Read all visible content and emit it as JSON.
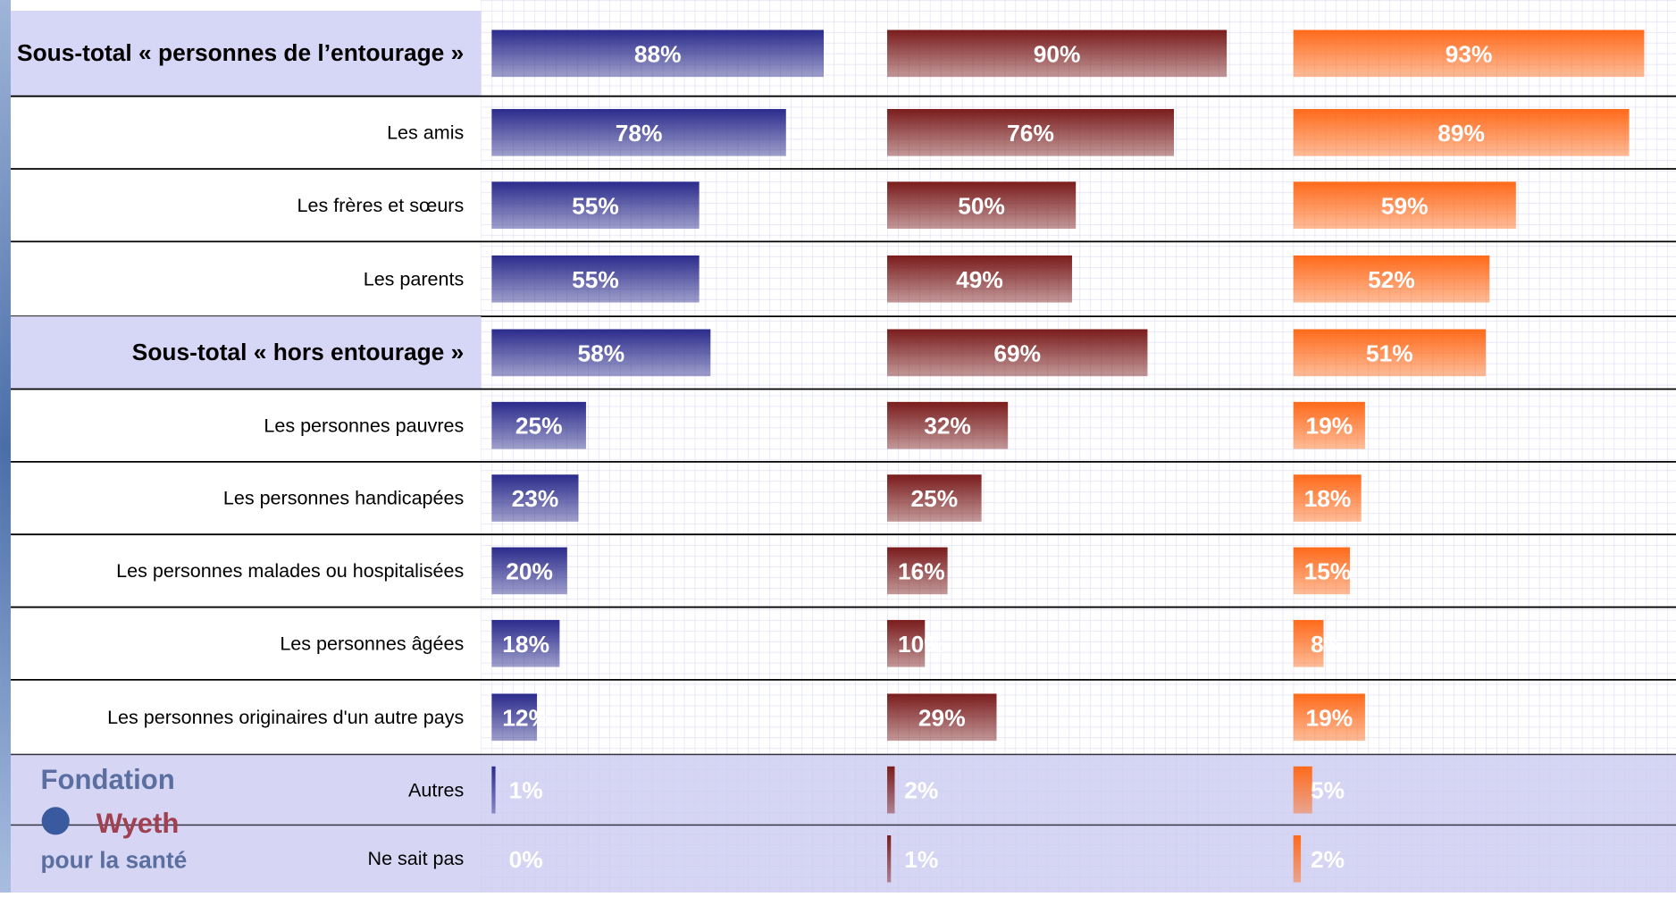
{
  "chart_data": {
    "type": "bar",
    "categories": [
      "Sous-total « personnes de l’entourage »",
      "Les amis",
      "Les frères et sœurs",
      "Les parents",
      "Sous-total « hors entourage »",
      "Les personnes pauvres",
      "Les personnes handicapées",
      "Les personnes malades ou hospitalisées",
      "Les personnes âgées",
      "Les personnes originaires d'un autre pays",
      "Autres",
      "Ne sait pas"
    ],
    "series": [
      {
        "color": "#2b2b8c",
        "values": [
          88,
          78,
          55,
          55,
          58,
          25,
          23,
          20,
          18,
          12,
          1,
          0
        ],
        "value_labels": [
          "88%",
          "78%",
          "55%",
          "55%",
          "58%",
          "25%",
          "23%",
          "20%",
          "18%",
          "12%",
          "1%",
          "0%"
        ]
      },
      {
        "color": "#7a1c1c",
        "values": [
          90,
          76,
          50,
          49,
          69,
          32,
          25,
          16,
          10,
          29,
          2,
          1
        ],
        "value_labels": [
          "90%",
          "76%",
          "50%",
          "49%",
          "69%",
          "32%",
          "25%",
          "16%",
          "10%",
          "29%",
          "2%",
          "1%"
        ]
      },
      {
        "color": "#ff6a1a",
        "values": [
          93,
          89,
          59,
          52,
          51,
          19,
          18,
          15,
          8,
          19,
          5,
          2
        ],
        "value_labels": [
          "93%",
          "89%",
          "59%",
          "52%",
          "51%",
          "19%",
          "18%",
          "15%",
          "8%",
          "19%",
          "5%",
          "2%"
        ]
      }
    ],
    "logo": [
      "Fondation",
      "Wyeth",
      "pour la santé"
    ]
  }
}
